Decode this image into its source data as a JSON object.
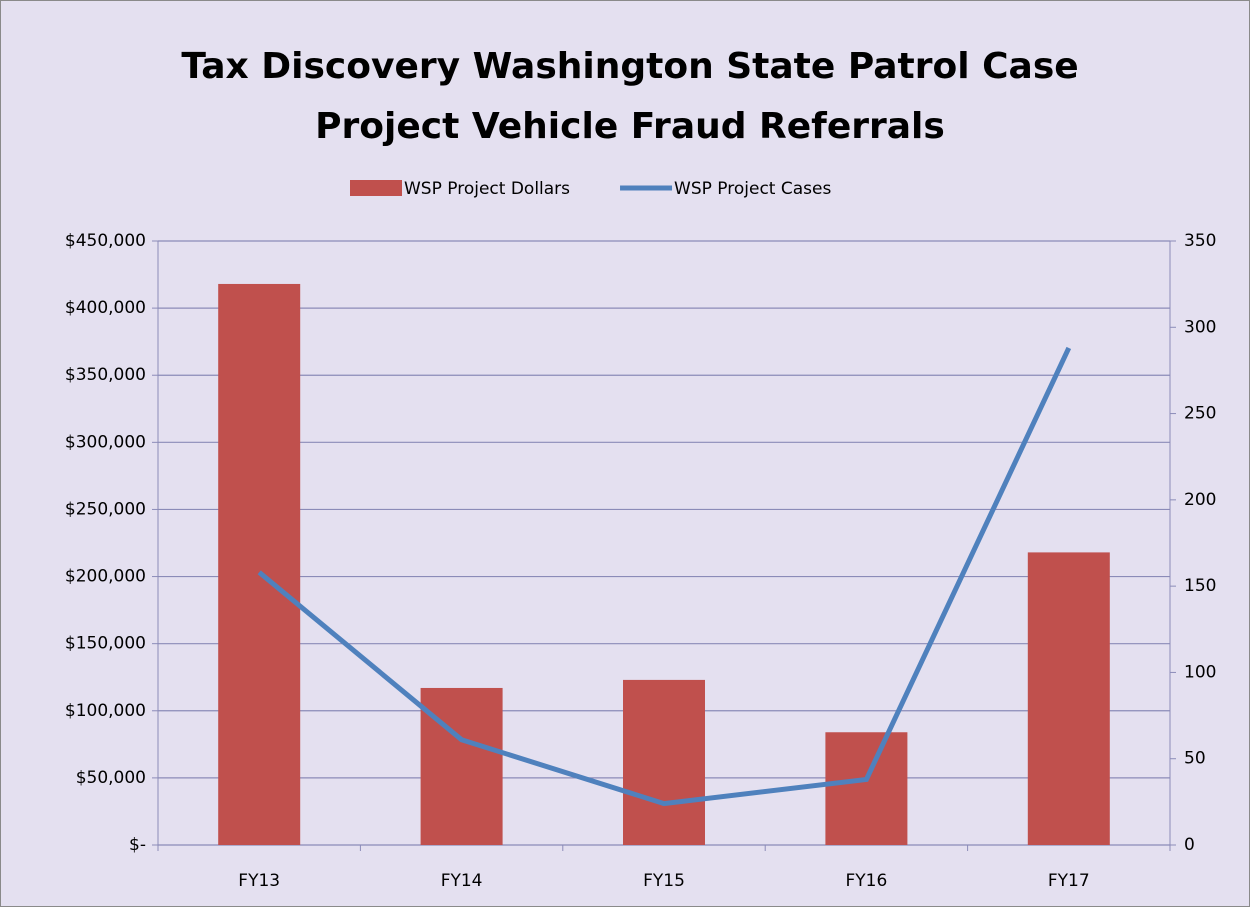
{
  "chart_data": {
    "type": "bar_line",
    "title": [
      "Tax Discovery Washington State Patrol Case",
      "Project Vehicle Fraud Referrals"
    ],
    "categories": [
      "FY13",
      "FY14",
      "FY15",
      "FY16",
      "FY17"
    ],
    "series": [
      {
        "name": "WSP Project Dollars",
        "type": "bar",
        "color": "#c0504d",
        "values": [
          418000,
          117000,
          123000,
          84000,
          218000
        ]
      },
      {
        "name": "WSP Project Cases",
        "type": "line",
        "axis": "y2",
        "color": "#4f81bd",
        "values": [
          158,
          61,
          24,
          38,
          288
        ]
      }
    ],
    "ylim": [
      0,
      450000
    ],
    "yticks": [
      {
        "value": 0,
        "label": "$-"
      },
      {
        "value": 50000,
        "label": "$50,000"
      },
      {
        "value": 100000,
        "label": "$100,000"
      },
      {
        "value": 150000,
        "label": "$150,000"
      },
      {
        "value": 200000,
        "label": "$200,000"
      },
      {
        "value": 250000,
        "label": "$250,000"
      },
      {
        "value": 300000,
        "label": "$300,000"
      },
      {
        "value": 350000,
        "label": "$350,000"
      },
      {
        "value": 400000,
        "label": "$400,000"
      },
      {
        "value": 450000,
        "label": "$450,000"
      }
    ],
    "y2lim": [
      0,
      350
    ],
    "y2ticks": [
      0,
      50,
      100,
      150,
      200,
      250,
      300,
      350
    ],
    "grid": true,
    "legend": "top"
  }
}
